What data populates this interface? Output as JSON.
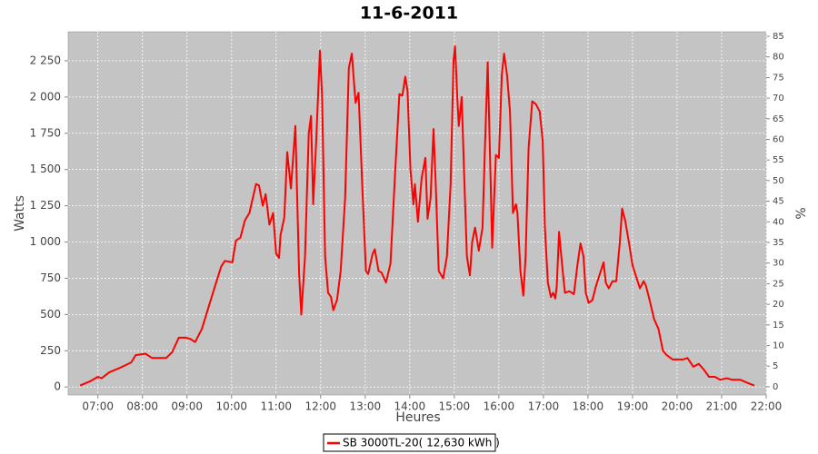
{
  "chart_data": {
    "type": "line",
    "title": "11-6-2011",
    "x_label": "Heures",
    "y_label": "Watts",
    "y2_label": "%",
    "xlim": [
      "06:20",
      "22:00"
    ],
    "xticks": [
      "07:00",
      "08:00",
      "09:00",
      "10:00",
      "11:00",
      "12:00",
      "13:00",
      "14:00",
      "15:00",
      "16:00",
      "17:00",
      "18:00",
      "19:00",
      "20:00",
      "21:00",
      "22:00"
    ],
    "ylim": [
      -55,
      2450
    ],
    "yticks": [
      0,
      250,
      500,
      750,
      {
        "value": 1000,
        "label": "1 000"
      },
      {
        "value": 1250,
        "label": "1 250"
      },
      {
        "value": 1500,
        "label": "1 500"
      },
      {
        "value": 1750,
        "label": "1 750"
      },
      {
        "value": 2000,
        "label": "2 000"
      },
      {
        "value": 2250,
        "label": "2 250"
      }
    ],
    "y2lim": [
      -2,
      86.1
    ],
    "y2ticks": [
      0,
      5,
      10,
      15,
      20,
      25,
      30,
      35,
      40,
      45,
      50,
      55,
      60,
      65,
      70,
      75,
      80,
      85
    ],
    "grid": true,
    "legend": "bottom",
    "x": [
      "06:36",
      "06:50",
      "07:00",
      "07:05",
      "07:15",
      "07:33",
      "07:45",
      "07:51",
      "08:04",
      "08:13",
      "08:32",
      "08:40",
      "08:49",
      "08:59",
      "09:05",
      "09:11",
      "09:20",
      "09:29",
      "09:38",
      "09:46",
      "09:51",
      "10:01",
      "10:06",
      "10:12",
      "10:18",
      "10:24",
      "10:33",
      "10:37",
      "10:42",
      "10:46",
      "10:51",
      "10:56",
      "11:00",
      "11:04",
      "11:06",
      "11:11",
      "11:15",
      "11:20",
      "11:26",
      "11:31",
      "11:34",
      "11:39",
      "11:44",
      "11:47",
      "11:50",
      "11:54",
      "11:59",
      "12:02",
      "12:06",
      "12:10",
      "12:14",
      "12:17",
      "12:22",
      "12:27",
      "12:33",
      "12:38",
      "12:42",
      "12:47",
      "12:51",
      "12:56",
      "13:01",
      "13:04",
      "13:10",
      "13:13",
      "13:18",
      "13:22",
      "13:28",
      "13:34",
      "13:40",
      "13:46",
      "13:50",
      "13:54",
      "13:57",
      "14:01",
      "14:05",
      "14:07",
      "14:11",
      "14:16",
      "14:21",
      "14:24",
      "14:28",
      "14:32",
      "14:35",
      "14:39",
      "14:45",
      "14:50",
      "14:55",
      "14:59",
      "15:01",
      "15:04",
      "15:06",
      "15:10",
      "15:13",
      "15:17",
      "15:21",
      "15:24",
      "15:28",
      "15:33",
      "15:38",
      "15:41",
      "15:45",
      "15:49",
      "15:51",
      "15:56",
      "16:00",
      "16:04",
      "16:07",
      "16:11",
      "16:15",
      "16:19",
      "16:23",
      "16:25",
      "16:29",
      "16:33",
      "16:36",
      "16:40",
      "16:45",
      "16:50",
      "16:55",
      "16:59",
      "17:02",
      "17:06",
      "17:10",
      "17:13",
      "17:16",
      "17:18",
      "17:21",
      "17:26",
      "17:29",
      "17:35",
      "17:41",
      "17:46",
      "17:50",
      "17:54",
      "17:57",
      "18:01",
      "18:06",
      "18:11",
      "18:16",
      "18:21",
      "18:24",
      "18:28",
      "18:33",
      "18:38",
      "18:43",
      "18:46",
      "18:50",
      "18:55",
      "19:00",
      "19:05",
      "19:10",
      "19:15",
      "19:18",
      "19:23",
      "19:29",
      "19:35",
      "19:41",
      "19:46",
      "19:54",
      "20:00",
      "20:08",
      "20:14",
      "20:22",
      "20:29",
      "20:36",
      "20:43",
      "20:51",
      "20:58",
      "21:07",
      "21:14",
      "21:25",
      "21:34",
      "21:44"
    ],
    "series": [
      {
        "name": "SB 3000TL-20( 12,630 kWh )",
        "color": "#ff0000",
        "values": [
          10,
          40,
          70,
          60,
          100,
          140,
          170,
          220,
          230,
          200,
          200,
          240,
          340,
          340,
          330,
          310,
          400,
          550,
          700,
          830,
          870,
          860,
          1010,
          1030,
          1150,
          1200,
          1400,
          1390,
          1250,
          1330,
          1120,
          1200,
          920,
          890,
          1050,
          1170,
          1620,
          1370,
          1800,
          780,
          500,
          900,
          1750,
          1870,
          1260,
          1700,
          2320,
          2000,
          900,
          650,
          620,
          530,
          600,
          800,
          1300,
          2200,
          2300,
          1960,
          2030,
          1400,
          800,
          780,
          920,
          950,
          800,
          790,
          720,
          850,
          1450,
          2020,
          2010,
          2140,
          2040,
          1500,
          1260,
          1400,
          1140,
          1440,
          1580,
          1160,
          1300,
          1780,
          1400,
          800,
          750,
          900,
          1400,
          2250,
          2350,
          2000,
          1800,
          2000,
          1500,
          900,
          770,
          1000,
          1100,
          940,
          1100,
          1600,
          2240,
          1400,
          960,
          1600,
          1580,
          2150,
          2300,
          2150,
          1900,
          1200,
          1260,
          1200,
          800,
          630,
          900,
          1650,
          1970,
          1950,
          1900,
          1700,
          1100,
          720,
          620,
          650,
          610,
          700,
          1070,
          800,
          650,
          660,
          640,
          850,
          990,
          900,
          650,
          580,
          600,
          700,
          780,
          860,
          720,
          680,
          730,
          730,
          1000,
          1230,
          1150,
          1000,
          840,
          760,
          680,
          730,
          700,
          600,
          470,
          400,
          250,
          220,
          190,
          190,
          190,
          200,
          140,
          160,
          120,
          70,
          70,
          50,
          60,
          50,
          50,
          30,
          10
        ]
      }
    ]
  }
}
